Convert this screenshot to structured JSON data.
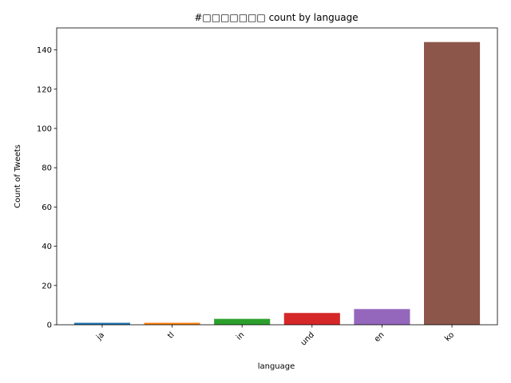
{
  "chart_data": {
    "type": "bar",
    "title": "#□□□□□□□ count by language",
    "xlabel": "language",
    "ylabel": "Count of Tweets",
    "categories": [
      "ja",
      "tl",
      "in",
      "und",
      "en",
      "ko"
    ],
    "values": [
      1,
      1,
      3,
      6,
      8,
      144
    ],
    "colors": [
      "#1f77b4",
      "#ff7f0e",
      "#2ca02c",
      "#d62728",
      "#9467bd",
      "#8c564b"
    ],
    "ylim": [
      0,
      151.2
    ],
    "yticks": [
      0,
      20,
      40,
      60,
      80,
      100,
      120,
      140
    ],
    "grid": false,
    "legend": "none"
  }
}
